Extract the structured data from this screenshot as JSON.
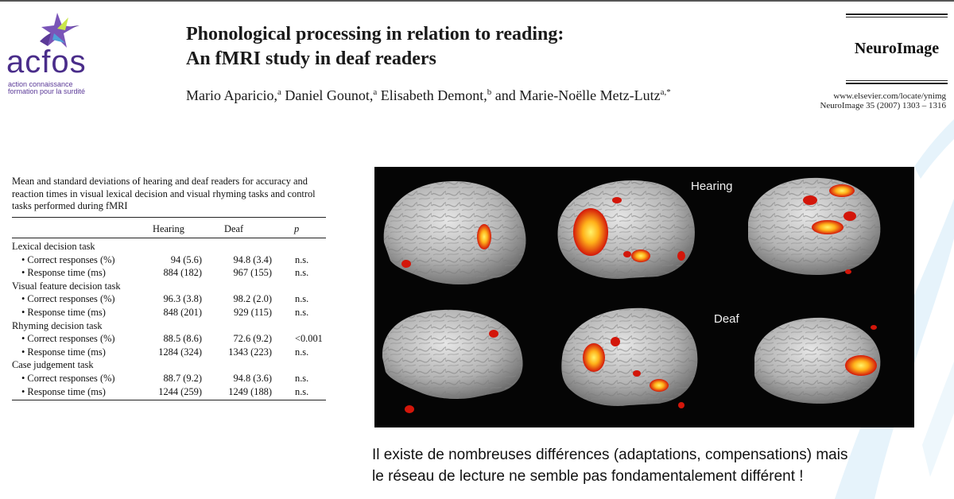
{
  "logo": {
    "name": "acfos",
    "tagline_1": "action connaissance",
    "tagline_2": "formation pour la surdité"
  },
  "paper": {
    "title_line_1": "Phonological processing in relation to reading:",
    "title_line_2": "An fMRI study in deaf readers",
    "authors": [
      {
        "name": "Mario Aparicio,",
        "sup": "a"
      },
      {
        "name": "Daniel Gounot,",
        "sup": "a"
      },
      {
        "name": "Elisabeth Demont,",
        "sup": "b"
      },
      {
        "name": "and Marie-Noëlle Metz-Lutz",
        "sup": "a,*"
      }
    ]
  },
  "journal": {
    "name": "NeuroImage",
    "url": "www.elsevier.com/locate/ynimg",
    "citation": "NeuroImage 35 (2007) 1303 – 1316"
  },
  "table": {
    "caption": "Mean and standard deviations of hearing and deaf readers for accuracy and reaction times in visual lexical decision and visual rhyming tasks and control tasks performed during fMRI",
    "headers": {
      "hearing": "Hearing",
      "deaf": "Deaf",
      "p": "p"
    },
    "rows": [
      {
        "label": "Lexical decision task",
        "hearing": "",
        "deaf": "",
        "p": "",
        "sub": false
      },
      {
        "label": "• Correct responses (%)",
        "hearing": "94 (5.6)",
        "deaf": "94.8 (3.4)",
        "p": "n.s.",
        "sub": true
      },
      {
        "label": "• Response time (ms)",
        "hearing": "884 (182)",
        "deaf": "967 (155)",
        "p": "n.s.",
        "sub": true
      },
      {
        "label": "Visual feature decision task",
        "hearing": "",
        "deaf": "",
        "p": "",
        "sub": false
      },
      {
        "label": "• Correct responses (%)",
        "hearing": "96.3 (3.8)",
        "deaf": "98.2 (2.0)",
        "p": "n.s.",
        "sub": true
      },
      {
        "label": "• Response time (ms)",
        "hearing": "848 (201)",
        "deaf": "929 (115)",
        "p": "n.s.",
        "sub": true
      },
      {
        "label": "Rhyming decision task",
        "hearing": "",
        "deaf": "",
        "p": "",
        "sub": false
      },
      {
        "label": "• Correct responses (%)",
        "hearing": "88.5 (8.6)",
        "deaf": "72.6 (9.2)",
        "p": "<0.001",
        "sub": true
      },
      {
        "label": "• Response time (ms)",
        "hearing": "1284 (324)",
        "deaf": "1343 (223)",
        "p": "n.s.",
        "sub": true
      },
      {
        "label": "Case judgement task",
        "hearing": "",
        "deaf": "",
        "p": "",
        "sub": false
      },
      {
        "label": "• Correct responses (%)",
        "hearing": "88.7 (9.2)",
        "deaf": "94.8 (3.6)",
        "p": "n.s.",
        "sub": true
      },
      {
        "label": "• Response time (ms)",
        "hearing": "1244 (259)",
        "deaf": "1249 (188)",
        "p": "n.s.",
        "sub": true
      }
    ]
  },
  "figure": {
    "label_top": "Hearing",
    "label_bottom": "Deaf"
  },
  "commentary": {
    "line_1": "Il existe de nombreuses différences (adaptations, compensations) mais",
    "line_2": "le réseau de lecture ne semble pas fondamentalement différent !"
  },
  "colors": {
    "logo_purple": "#4a2d8a",
    "brain_gray": "#b9b9b9",
    "activation_red": "#d3160a",
    "activation_yellow": "#ffd21c",
    "swoosh_blue": "#e6f3fb"
  }
}
